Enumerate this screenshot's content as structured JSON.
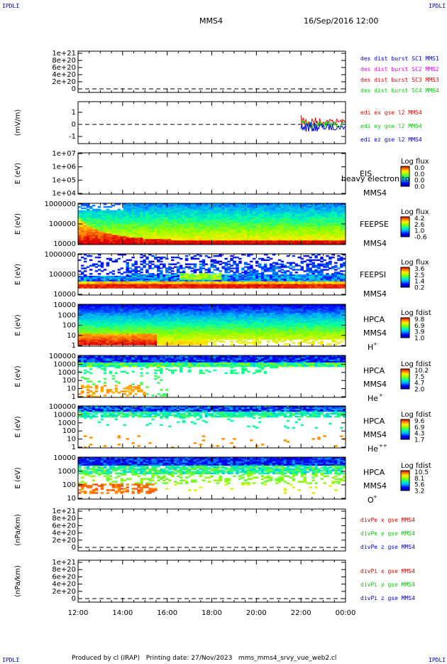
{
  "corner_label": "IPDLI",
  "header": {
    "spacecraft": "MMS4",
    "date": "16/Sep/2016 12:00"
  },
  "footer": "Produced by cl (IRAP)   Printing date: 27/Nov/2023   mms_mms4_srvy_vue_web2.cl",
  "colors": {
    "red": "#dd0000",
    "magenta": "#dd00dd",
    "green": "#00cc00",
    "blue": "#0000cc",
    "dashed": "#000000"
  },
  "chart_data": {
    "type": "heatmap",
    "x_tick_labels": [
      "12:00",
      "14:00",
      "16:00",
      "18:00",
      "20:00",
      "22:00",
      "00:00"
    ],
    "xlim_hours": [
      12,
      24
    ],
    "panels": [
      {
        "kind": "line",
        "ytick_labels": [
          "1e+21",
          "8e+20",
          "6e+20",
          "4e+20",
          "2e+20",
          "0"
        ],
        "legend": [
          {
            "text": "des dist burst SC1 MMS1",
            "color": "#0000cc"
          },
          {
            "text": "des dist burst SC2 MMS2",
            "color": "#dd00dd"
          },
          {
            "text": "des dist burst SC3 MMS3",
            "color": "#dd0000"
          },
          {
            "text": "des dist burst SC4 MMS4",
            "color": "#00cc00"
          }
        ]
      },
      {
        "kind": "line",
        "ylabel": "(mV/m)",
        "ytick_labels": [
          "1",
          "0",
          "-1"
        ],
        "legend": [
          {
            "text": "edi ex gse l2 MMS4",
            "color": "#dd0000"
          },
          {
            "text": "edi ey gse l2 MMS4",
            "color": "#00cc00"
          },
          {
            "text": "edi ez gse l2 MMS4",
            "color": "#0000cc"
          }
        ],
        "series_start_hour": 22.0
      },
      {
        "kind": "spec",
        "ylabel": "E (eV)",
        "ytick_labels": [
          "1e+07",
          "1e+06",
          "1e+05",
          "1e+04"
        ],
        "right_labels": [
          "EIS",
          "MMS4"
        ],
        "overlay_text": "heavy electron to",
        "cbar_title": "Log flux",
        "cbar_ticks": [
          "0.0",
          "0.0",
          "0.0",
          "0.0"
        ],
        "data": "none"
      },
      {
        "kind": "spec",
        "ylabel": "E (eV)",
        "ytick_labels": [
          "1000000",
          "100000",
          "10000"
        ],
        "right_labels": [
          "FEEPSE",
          "MMS4"
        ],
        "cbar_title": "Log flux",
        "cbar_ticks": [
          "4.2",
          "2.6",
          "1.0",
          "-0.6"
        ],
        "data": "feepse"
      },
      {
        "kind": "spec",
        "ylabel": "E (eV)",
        "ytick_labels": [
          "1000000",
          "100000",
          "10000"
        ],
        "right_labels": [
          "FEEPSI",
          "MMS4"
        ],
        "cbar_title": "Log flux",
        "cbar_ticks": [
          "3.6",
          "2.5",
          "1.4",
          "0.2"
        ],
        "data": "feepsi"
      },
      {
        "kind": "spec",
        "ylabel": "E (eV)",
        "ytick_labels": [
          "10000",
          "1000",
          "100",
          "10",
          "1"
        ],
        "right_labels": [
          "HPCA",
          "MMS4"
        ],
        "species": "H",
        "charge": "+",
        "cbar_title": "Log fdist",
        "cbar_ticks": [
          "9.8",
          "6.9",
          "3.9",
          "1.0"
        ],
        "data": "hplus"
      },
      {
        "kind": "spec",
        "ylabel": "E (eV)",
        "ytick_labels": [
          "100000",
          "10000",
          "1000",
          "100",
          "10",
          "1"
        ],
        "right_labels": [
          "HPCA",
          "MMS4"
        ],
        "species": "He",
        "charge": "+",
        "cbar_title": "Log fdist",
        "cbar_ticks": [
          "10.2",
          "7.5",
          "4.7",
          "2.0"
        ],
        "data": "heplus"
      },
      {
        "kind": "spec",
        "ylabel": "E (eV)",
        "ytick_labels": [
          "100000",
          "10000",
          "1000",
          "100",
          "10",
          "1"
        ],
        "right_labels": [
          "HPCA",
          "MMS4"
        ],
        "species": "He",
        "charge": "++",
        "cbar_title": "Log fdist",
        "cbar_ticks": [
          "9.6",
          "6.9",
          "4.3",
          "1.7"
        ],
        "data": "hepp"
      },
      {
        "kind": "spec",
        "ylabel": "E (eV)",
        "ytick_labels": [
          "10000",
          "1000",
          "100",
          "10"
        ],
        "right_labels": [
          "HPCA",
          "MMS4"
        ],
        "species": "O",
        "charge": "+",
        "cbar_title": "Log fdist",
        "cbar_ticks": [
          "10.5",
          "8.1",
          "5.6",
          "3.2"
        ],
        "data": "oplus"
      },
      {
        "kind": "line",
        "ylabel": "(nPa/km)",
        "ytick_labels": [
          "1e+21",
          "8e+20",
          "6e+20",
          "4e+20",
          "2e+20",
          "0"
        ],
        "legend": [
          {
            "text": "divPe x gse MMS4",
            "color": "#dd0000"
          },
          {
            "text": "divPe y gse MMS4",
            "color": "#00cc00"
          },
          {
            "text": "divPe z gse MMS4",
            "color": "#0000cc"
          }
        ]
      },
      {
        "kind": "line",
        "ylabel": "(nPa/km)",
        "ytick_labels": [
          "1e+21",
          "8e+20",
          "6e+20",
          "4e+20",
          "2e+20",
          "0"
        ],
        "legend": [
          {
            "text": "divPi x gse MMS4",
            "color": "#dd0000"
          },
          {
            "text": "divPi y gse MMS4",
            "color": "#00cc00"
          },
          {
            "text": "divPi z gse MMS4",
            "color": "#0000cc"
          }
        ]
      }
    ]
  }
}
